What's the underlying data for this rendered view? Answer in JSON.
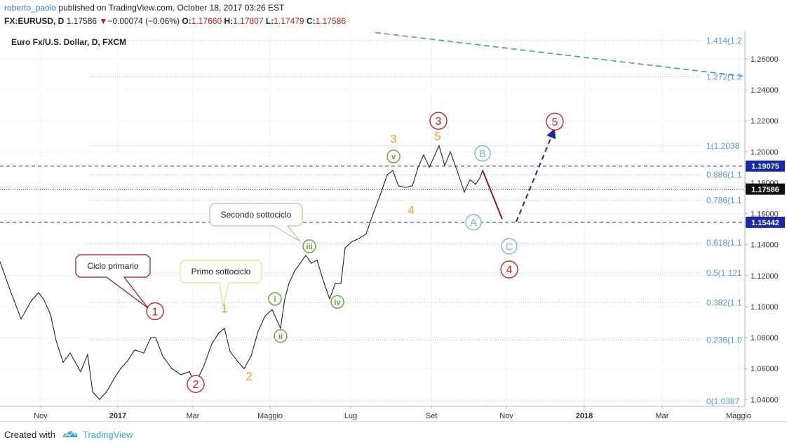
{
  "header": {
    "user": "roberto_paolo",
    "published": "published on TradingView.com, October 18, 2017 03:26 EST",
    "symbol": "FX:EURUSD, D",
    "last": "1.17586",
    "change_arrow": "▼",
    "change": "−0.00074 (−0.06%)",
    "o_label": "O:",
    "o_value": "1.17660",
    "h_label": "H:",
    "h_value": "1.17807",
    "l_label": "L:",
    "l_value": "1.17479",
    "c_label": "C:",
    "c_value": "1.17586"
  },
  "footer": {
    "created_with": "Created with",
    "brand": "TradingView"
  },
  "colors": {
    "price_line": "#222222",
    "fib_line": "#9fc2e6",
    "fib_text": "#5b9bd5",
    "red_wave": "#c0272d",
    "orange_wave": "#f39c33",
    "green_wave": "#5aa03a",
    "blue_wave": "#7fb3e3",
    "dashed_navy": "#1a2a9c"
  },
  "chart_data": {
    "type": "line",
    "title": "Euro Fx/U.S. Dollar, D, FXCM",
    "x_ticks": [
      "Nov",
      "2017",
      "Mar",
      "Maggio",
      "Lug",
      "Set",
      "Nov",
      "2018",
      "Mar",
      "Maggio"
    ],
    "y_ticks": [
      "1.26000",
      "1.24000",
      "1.22000",
      "1.20000",
      "1.18000",
      "1.16000",
      "1.14000",
      "1.12000",
      "1.10000",
      "1.08000",
      "1.06000",
      "1.04000"
    ],
    "ylim": [
      1.0356,
      1.2781
    ],
    "fib_levels": [
      {
        "label": "1.414(1.2",
        "value": 1.2718
      },
      {
        "label": "1.272(1.2",
        "value": 1.2484
      },
      {
        "label": "1(1.2038",
        "value": 1.2038
      },
      {
        "label": "0.886(1.1",
        "value": 1.1851
      },
      {
        "label": "0.786(1.1",
        "value": 1.1687
      },
      {
        "label": "0.618(1.1",
        "value": 1.1411
      },
      {
        "label": "0.5(1.121",
        "value": 1.1217
      },
      {
        "label": "0.382(1.1",
        "value": 1.1024
      },
      {
        "label": "0.236(1.0",
        "value": 1.0784
      },
      {
        "label": "0(1.0387",
        "value": 1.0387
      }
    ],
    "price_labels": [
      {
        "label": "1.19075",
        "value": 1.19075,
        "style": "navy"
      },
      {
        "label": "1.17586",
        "value": 1.17586,
        "style": "black"
      },
      {
        "label": "1.15442",
        "value": 1.15442,
        "style": "navy"
      }
    ],
    "price": [
      {
        "x": 0,
        "y": 1.129
      },
      {
        "x": 15,
        "y": 1.11
      },
      {
        "x": 30,
        "y": 1.092
      },
      {
        "x": 45,
        "y": 1.104
      },
      {
        "x": 55,
        "y": 1.109
      },
      {
        "x": 62,
        "y": 1.105
      },
      {
        "x": 72,
        "y": 1.095
      },
      {
        "x": 80,
        "y": 1.078
      },
      {
        "x": 90,
        "y": 1.064
      },
      {
        "x": 100,
        "y": 1.07
      },
      {
        "x": 115,
        "y": 1.058
      },
      {
        "x": 125,
        "y": 1.069
      },
      {
        "x": 132,
        "y": 1.045
      },
      {
        "x": 142,
        "y": 1.04
      },
      {
        "x": 152,
        "y": 1.045
      },
      {
        "x": 162,
        "y": 1.053
      },
      {
        "x": 172,
        "y": 1.06
      },
      {
        "x": 182,
        "y": 1.065
      },
      {
        "x": 192,
        "y": 1.072
      },
      {
        "x": 205,
        "y": 1.07
      },
      {
        "x": 215,
        "y": 1.08
      },
      {
        "x": 222,
        "y": 1.08
      },
      {
        "x": 232,
        "y": 1.068
      },
      {
        "x": 245,
        "y": 1.06
      },
      {
        "x": 258,
        "y": 1.056
      },
      {
        "x": 270,
        "y": 1.058
      },
      {
        "x": 278,
        "y": 1.05
      },
      {
        "x": 290,
        "y": 1.061
      },
      {
        "x": 302,
        "y": 1.076
      },
      {
        "x": 312,
        "y": 1.083
      },
      {
        "x": 320,
        "y": 1.086
      },
      {
        "x": 328,
        "y": 1.071
      },
      {
        "x": 338,
        "y": 1.065
      },
      {
        "x": 348,
        "y": 1.06
      },
      {
        "x": 358,
        "y": 1.068
      },
      {
        "x": 368,
        "y": 1.084
      },
      {
        "x": 378,
        "y": 1.094
      },
      {
        "x": 388,
        "y": 1.098
      },
      {
        "x": 394,
        "y": 1.092
      },
      {
        "x": 400,
        "y": 1.086
      },
      {
        "x": 406,
        "y": 1.105
      },
      {
        "x": 412,
        "y": 1.115
      },
      {
        "x": 420,
        "y": 1.123
      },
      {
        "x": 428,
        "y": 1.128
      },
      {
        "x": 436,
        "y": 1.133
      },
      {
        "x": 444,
        "y": 1.128
      },
      {
        "x": 452,
        "y": 1.13
      },
      {
        "x": 460,
        "y": 1.118
      },
      {
        "x": 470,
        "y": 1.105
      },
      {
        "x": 478,
        "y": 1.115
      },
      {
        "x": 486,
        "y": 1.115
      },
      {
        "x": 492,
        "y": 1.138
      },
      {
        "x": 502,
        "y": 1.142
      },
      {
        "x": 512,
        "y": 1.144
      },
      {
        "x": 522,
        "y": 1.147
      },
      {
        "x": 532,
        "y": 1.16
      },
      {
        "x": 542,
        "y": 1.172
      },
      {
        "x": 552,
        "y": 1.185
      },
      {
        "x": 560,
        "y": 1.188
      },
      {
        "x": 568,
        "y": 1.178
      },
      {
        "x": 578,
        "y": 1.177
      },
      {
        "x": 588,
        "y": 1.178
      },
      {
        "x": 596,
        "y": 1.19
      },
      {
        "x": 604,
        "y": 1.198
      },
      {
        "x": 612,
        "y": 1.19
      },
      {
        "x": 620,
        "y": 1.198
      },
      {
        "x": 626,
        "y": 1.204
      },
      {
        "x": 634,
        "y": 1.191
      },
      {
        "x": 642,
        "y": 1.2
      },
      {
        "x": 650,
        "y": 1.19
      },
      {
        "x": 656,
        "y": 1.182
      },
      {
        "x": 662,
        "y": 1.174
      },
      {
        "x": 670,
        "y": 1.182
      },
      {
        "x": 678,
        "y": 1.179
      },
      {
        "x": 684,
        "y": 1.183
      },
      {
        "x": 688,
        "y": 1.188
      }
    ],
    "lines": [
      {
        "name": "trendline",
        "style": "dashed-blue",
        "points": [
          [
            535,
            1.277
          ],
          [
            1060,
            1.2488
          ]
        ]
      },
      {
        "name": "projection-4",
        "style": "dark-red",
        "points": [
          [
            688,
            1.188
          ],
          [
            716,
            1.1565
          ]
        ]
      },
      {
        "name": "projection-5",
        "style": "dashed-navy-arrow",
        "points": [
          [
            736,
            1.1548
          ],
          [
            790,
            1.214
          ]
        ]
      }
    ],
    "annotations": [
      {
        "text": "1",
        "style": "circle-red",
        "x": 221,
        "y": 1.097
      },
      {
        "text": "2",
        "style": "circle-red",
        "x": 279,
        "y": 1.05
      },
      {
        "text": "3",
        "style": "circle-red",
        "x": 625,
        "y": 1.22
      },
      {
        "text": "4",
        "style": "circle-red",
        "x": 726,
        "y": 1.124
      },
      {
        "text": "5",
        "style": "circle-red",
        "x": 791,
        "y": 1.2195
      },
      {
        "text": "1",
        "style": "orange",
        "x": 320,
        "y": 1.099
      },
      {
        "text": "2",
        "style": "orange",
        "x": 355,
        "y": 1.055
      },
      {
        "text": "3",
        "style": "orange",
        "x": 561,
        "y": 1.2085
      },
      {
        "text": "4",
        "style": "orange",
        "x": 586,
        "y": 1.1625
      },
      {
        "text": "5",
        "style": "orange",
        "x": 624,
        "y": 1.21
      },
      {
        "text": "i",
        "style": "circle-green",
        "x": 392,
        "y": 1.105
      },
      {
        "text": "ii",
        "style": "circle-green",
        "x": 400,
        "y": 1.081
      },
      {
        "text": "iii",
        "style": "circle-green",
        "x": 441,
        "y": 1.139
      },
      {
        "text": "iv",
        "style": "circle-green",
        "x": 481,
        "y": 1.103
      },
      {
        "text": "v",
        "style": "circle-green",
        "x": 561,
        "y": 1.197
      },
      {
        "text": "A",
        "style": "circle-blue",
        "x": 675,
        "y": 1.1545
      },
      {
        "text": "B",
        "style": "circle-blue",
        "x": 688,
        "y": 1.199
      },
      {
        "text": "C",
        "style": "circle-blue",
        "x": 726,
        "y": 1.139
      }
    ],
    "callouts": [
      {
        "text": "Ciclo primario",
        "style": "red"
      },
      {
        "text": "Primo sottociclo",
        "style": "yellow"
      },
      {
        "text": "Secondo sottociclo",
        "style": "green"
      }
    ]
  }
}
